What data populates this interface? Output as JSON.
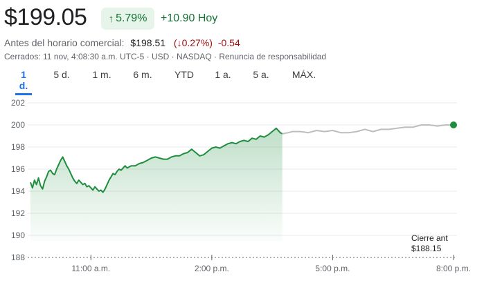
{
  "quote": {
    "price": "$199.05",
    "change_pct": "5.79%",
    "change_abs": "+10.90 Hoy",
    "arrow_up": "↑",
    "pre_market_label": "Antes del horario comercial:",
    "pre_market_price": "$198.51",
    "pre_market_pct": "(↓0.27%)",
    "pre_market_change": "-0.54",
    "meta_text": "Cerrados: 11 nov, 4:08:30 a.m. UTC-5 · USD · NASDAQ · ",
    "disclaimer_link": "Renuncia de responsabilidad"
  },
  "tabs": [
    {
      "label": "1 d."
    },
    {
      "label": "5 d."
    },
    {
      "label": "1 m."
    },
    {
      "label": "6 m."
    },
    {
      "label": "YTD"
    },
    {
      "label": "1 a."
    },
    {
      "label": "5 a."
    },
    {
      "label": "MÁX."
    }
  ],
  "colors": {
    "up": "#1e8e3e",
    "after_hours": "#bdbdbd",
    "badge_bg": "#e6f4ea",
    "accent": "#1a73e8"
  },
  "chart_data": {
    "type": "area",
    "title": "",
    "xlabel": "",
    "ylabel": "",
    "ylim": [
      188,
      202
    ],
    "yticks": [
      "202",
      "200",
      "198",
      "196",
      "194",
      "192",
      "190",
      "188"
    ],
    "xticks": [
      {
        "label": "11:00 a.m.",
        "t": 11.0
      },
      {
        "label": "2:00 p.m.",
        "t": 14.0
      },
      {
        "label": "5:00 p.m.",
        "t": 17.0
      },
      {
        "label": "8:00 p.m.",
        "t": 20.0
      }
    ],
    "x_range_hours": [
      9.5,
      20.0
    ],
    "grid": true,
    "previous_close": {
      "label": "Cierre ant",
      "value_label": "$188.15",
      "value": 188.15
    },
    "series": [
      {
        "session": "regular",
        "points": [
          [
            9.5,
            194.8
          ],
          [
            9.55,
            194.3
          ],
          [
            9.6,
            195.0
          ],
          [
            9.65,
            194.6
          ],
          [
            9.7,
            195.2
          ],
          [
            9.75,
            194.5
          ],
          [
            9.8,
            194.2
          ],
          [
            9.85,
            194.9
          ],
          [
            9.9,
            195.3
          ],
          [
            9.95,
            195.8
          ],
          [
            10.0,
            195.9
          ],
          [
            10.05,
            195.6
          ],
          [
            10.1,
            195.5
          ],
          [
            10.15,
            196.0
          ],
          [
            10.2,
            196.4
          ],
          [
            10.25,
            196.8
          ],
          [
            10.3,
            197.1
          ],
          [
            10.35,
            196.7
          ],
          [
            10.4,
            196.3
          ],
          [
            10.45,
            196.0
          ],
          [
            10.5,
            195.6
          ],
          [
            10.55,
            195.2
          ],
          [
            10.6,
            194.9
          ],
          [
            10.65,
            194.7
          ],
          [
            10.7,
            195.0
          ],
          [
            10.75,
            194.8
          ],
          [
            10.8,
            194.6
          ],
          [
            10.85,
            194.7
          ],
          [
            10.9,
            194.4
          ],
          [
            10.95,
            194.5
          ],
          [
            11.0,
            194.3
          ],
          [
            11.05,
            194.1
          ],
          [
            11.1,
            194.4
          ],
          [
            11.15,
            194.2
          ],
          [
            11.2,
            194.0
          ],
          [
            11.25,
            194.1
          ],
          [
            11.3,
            193.9
          ],
          [
            11.35,
            194.2
          ],
          [
            11.4,
            194.6
          ],
          [
            11.45,
            195.0
          ],
          [
            11.5,
            195.3
          ],
          [
            11.55,
            195.6
          ],
          [
            11.6,
            195.5
          ],
          [
            11.65,
            195.8
          ],
          [
            11.7,
            196.0
          ],
          [
            11.75,
            195.9
          ],
          [
            11.8,
            196.1
          ],
          [
            11.85,
            196.3
          ],
          [
            11.9,
            196.1
          ],
          [
            11.95,
            196.2
          ],
          [
            12.0,
            196.3
          ],
          [
            12.1,
            196.3
          ],
          [
            12.2,
            196.5
          ],
          [
            12.3,
            196.6
          ],
          [
            12.4,
            196.8
          ],
          [
            12.5,
            197.0
          ],
          [
            12.6,
            197.1
          ],
          [
            12.7,
            197.0
          ],
          [
            12.8,
            196.9
          ],
          [
            12.9,
            196.9
          ],
          [
            13.0,
            197.1
          ],
          [
            13.1,
            197.2
          ],
          [
            13.2,
            197.2
          ],
          [
            13.3,
            197.4
          ],
          [
            13.4,
            197.5
          ],
          [
            13.5,
            197.8
          ],
          [
            13.6,
            197.5
          ],
          [
            13.7,
            197.2
          ],
          [
            13.8,
            197.3
          ],
          [
            13.9,
            197.6
          ],
          [
            14.0,
            197.9
          ],
          [
            14.1,
            198.0
          ],
          [
            14.2,
            197.9
          ],
          [
            14.3,
            198.1
          ],
          [
            14.4,
            198.3
          ],
          [
            14.5,
            198.4
          ],
          [
            14.6,
            198.3
          ],
          [
            14.7,
            198.5
          ],
          [
            14.8,
            198.6
          ],
          [
            14.9,
            198.5
          ],
          [
            15.0,
            198.8
          ],
          [
            15.1,
            198.7
          ],
          [
            15.2,
            199.0
          ],
          [
            15.3,
            198.9
          ],
          [
            15.4,
            199.1
          ],
          [
            15.5,
            199.4
          ],
          [
            15.6,
            199.7
          ],
          [
            15.7,
            199.3
          ],
          [
            15.75,
            199.2
          ]
        ]
      },
      {
        "session": "after_hours",
        "points": [
          [
            15.75,
            199.2
          ],
          [
            15.9,
            199.3
          ],
          [
            16.0,
            199.4
          ],
          [
            16.2,
            199.4
          ],
          [
            16.4,
            199.3
          ],
          [
            16.6,
            199.5
          ],
          [
            16.8,
            199.4
          ],
          [
            17.0,
            199.5
          ],
          [
            17.2,
            199.3
          ],
          [
            17.4,
            199.3
          ],
          [
            17.6,
            199.4
          ],
          [
            17.8,
            199.6
          ],
          [
            18.0,
            199.4
          ],
          [
            18.2,
            199.6
          ],
          [
            18.4,
            199.6
          ],
          [
            18.6,
            199.7
          ],
          [
            18.8,
            199.8
          ],
          [
            19.0,
            199.8
          ],
          [
            19.2,
            200.0
          ],
          [
            19.4,
            200.0
          ],
          [
            19.6,
            199.9
          ],
          [
            19.8,
            200.0
          ],
          [
            20.0,
            200.0
          ]
        ]
      }
    ]
  }
}
